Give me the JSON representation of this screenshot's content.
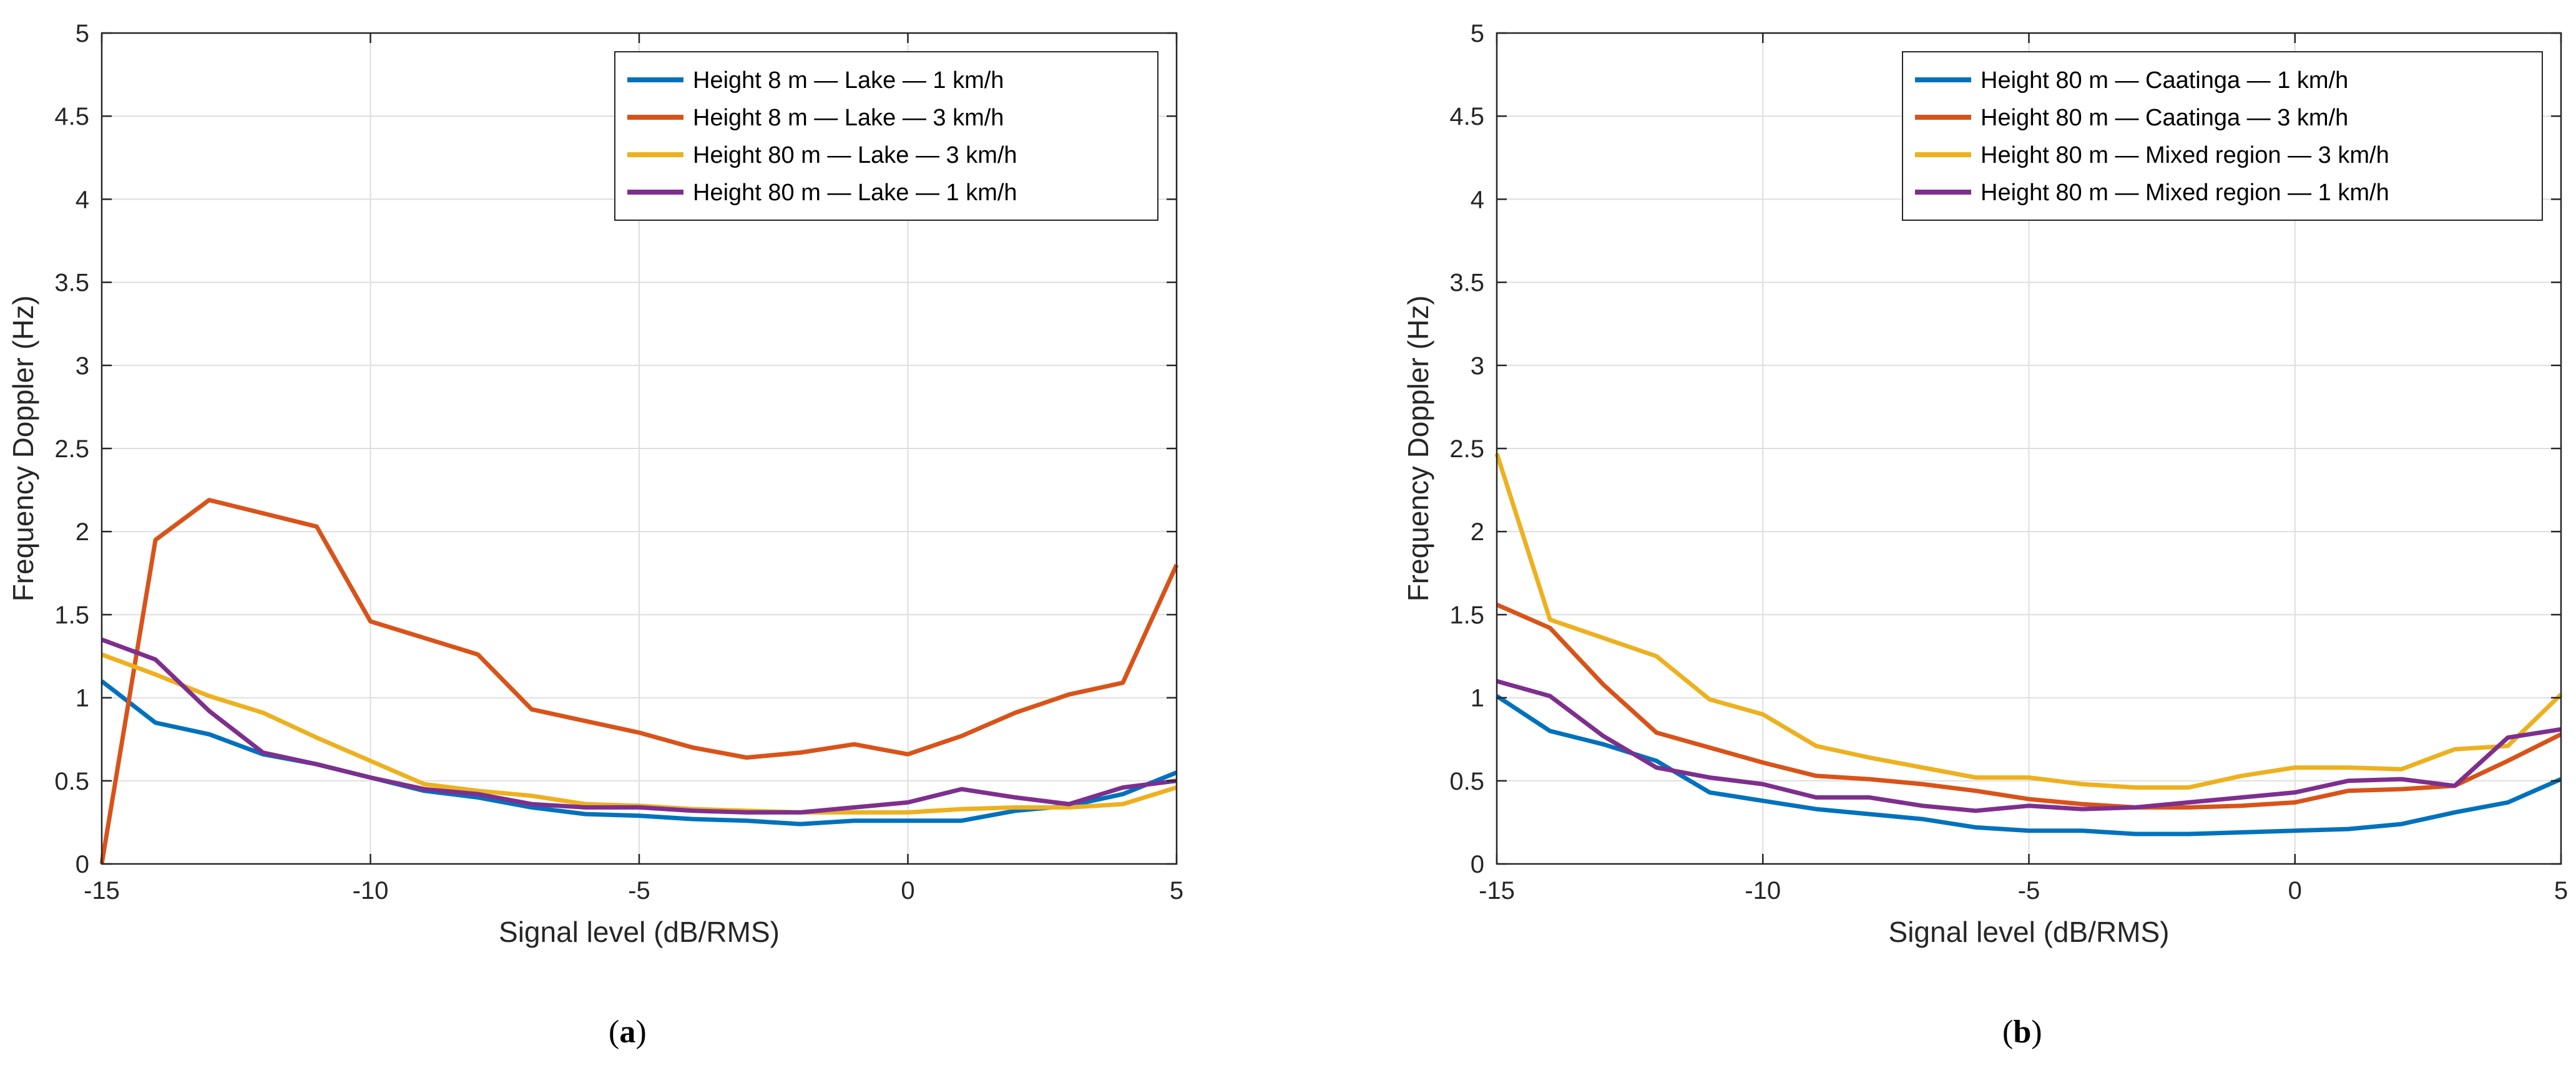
{
  "chart_data": [
    {
      "type": "line",
      "caption": "a",
      "xlabel": "Signal level (dB/RMS)",
      "ylabel": "Frequency Doppler (Hz)",
      "xlim": [
        -15,
        5
      ],
      "ylim": [
        0,
        5
      ],
      "xticks": [
        -15,
        -10,
        -5,
        0,
        5
      ],
      "yticks": [
        0,
        0.5,
        1,
        1.5,
        2,
        2.5,
        3,
        3.5,
        4,
        4.5,
        5
      ],
      "grid": true,
      "legend_position": "top-right",
      "x": [
        -15,
        -14,
        -13,
        -12,
        -11,
        -10,
        -9,
        -8,
        -7,
        -6,
        -5,
        -4,
        -3,
        -2,
        -1,
        0,
        1,
        2,
        3,
        4,
        5
      ],
      "series": [
        {
          "name": "Height 8 m — Lake — 1 km/h",
          "color": "#0072BD",
          "values": [
            1.1,
            0.85,
            0.78,
            0.66,
            0.6,
            0.52,
            0.44,
            0.4,
            0.34,
            0.3,
            0.29,
            0.27,
            0.26,
            0.24,
            0.26,
            0.26,
            0.26,
            0.32,
            0.35,
            0.42,
            0.55
          ]
        },
        {
          "name": "Height 8 m — Lake — 3 km/h",
          "color": "#D95319",
          "values": [
            0.0,
            1.95,
            2.19,
            2.11,
            2.03,
            1.46,
            1.36,
            1.26,
            0.93,
            0.86,
            0.79,
            0.7,
            0.64,
            0.67,
            0.72,
            0.66,
            0.77,
            0.91,
            1.02,
            1.09,
            1.8
          ]
        },
        {
          "name": "Height 80 m — Lake — 3 km/h",
          "color": "#EDB120",
          "values": [
            1.26,
            1.14,
            1.01,
            0.91,
            0.76,
            0.62,
            0.48,
            0.44,
            0.41,
            0.36,
            0.35,
            0.33,
            0.32,
            0.31,
            0.31,
            0.31,
            0.33,
            0.34,
            0.34,
            0.36,
            0.46
          ]
        },
        {
          "name": "Height 80 m — Lake — 1 km/h",
          "color": "#7E2F8E",
          "values": [
            1.35,
            1.23,
            0.92,
            0.67,
            0.6,
            0.52,
            0.45,
            0.42,
            0.36,
            0.34,
            0.34,
            0.32,
            0.31,
            0.31,
            0.34,
            0.37,
            0.45,
            0.4,
            0.36,
            0.46,
            0.5
          ]
        }
      ]
    },
    {
      "type": "line",
      "caption": "b",
      "xlabel": "Signal level (dB/RMS)",
      "ylabel": "Frequency Doppler (Hz)",
      "xlim": [
        -15,
        5
      ],
      "ylim": [
        0,
        5
      ],
      "xticks": [
        -15,
        -10,
        -5,
        0,
        5
      ],
      "yticks": [
        0,
        0.5,
        1,
        1.5,
        2,
        2.5,
        3,
        3.5,
        4,
        4.5,
        5
      ],
      "grid": true,
      "legend_position": "top-right",
      "x": [
        -15,
        -14,
        -13,
        -12,
        -11,
        -10,
        -9,
        -8,
        -7,
        -6,
        -5,
        -4,
        -3,
        -2,
        -1,
        0,
        1,
        2,
        3,
        4,
        5
      ],
      "series": [
        {
          "name": "Height 80 m — Caatinga — 1 km/h",
          "color": "#0072BD",
          "values": [
            1.01,
            0.8,
            0.72,
            0.62,
            0.43,
            0.38,
            0.33,
            0.3,
            0.27,
            0.22,
            0.2,
            0.2,
            0.18,
            0.18,
            0.19,
            0.2,
            0.21,
            0.24,
            0.31,
            0.37,
            0.51
          ]
        },
        {
          "name": "Height 80 m — Caatinga — 3 km/h",
          "color": "#D95319",
          "values": [
            1.56,
            1.42,
            1.08,
            0.79,
            0.7,
            0.61,
            0.53,
            0.51,
            0.48,
            0.44,
            0.39,
            0.36,
            0.34,
            0.34,
            0.35,
            0.37,
            0.44,
            0.45,
            0.47,
            0.62,
            0.78
          ]
        },
        {
          "name": "Height 80 m — Mixed region — 3 km/h",
          "color": "#EDB120",
          "values": [
            2.47,
            1.47,
            1.36,
            1.25,
            0.99,
            0.9,
            0.71,
            0.64,
            0.58,
            0.52,
            0.52,
            0.48,
            0.46,
            0.46,
            0.53,
            0.58,
            0.58,
            0.57,
            0.69,
            0.71,
            1.02
          ]
        },
        {
          "name": "Height 80 m — Mixed region — 1 km/h",
          "color": "#7E2F8E",
          "values": [
            1.1,
            1.01,
            0.77,
            0.58,
            0.52,
            0.48,
            0.4,
            0.4,
            0.35,
            0.32,
            0.35,
            0.33,
            0.34,
            0.37,
            0.4,
            0.43,
            0.5,
            0.51,
            0.47,
            0.76,
            0.81
          ]
        }
      ]
    }
  ]
}
